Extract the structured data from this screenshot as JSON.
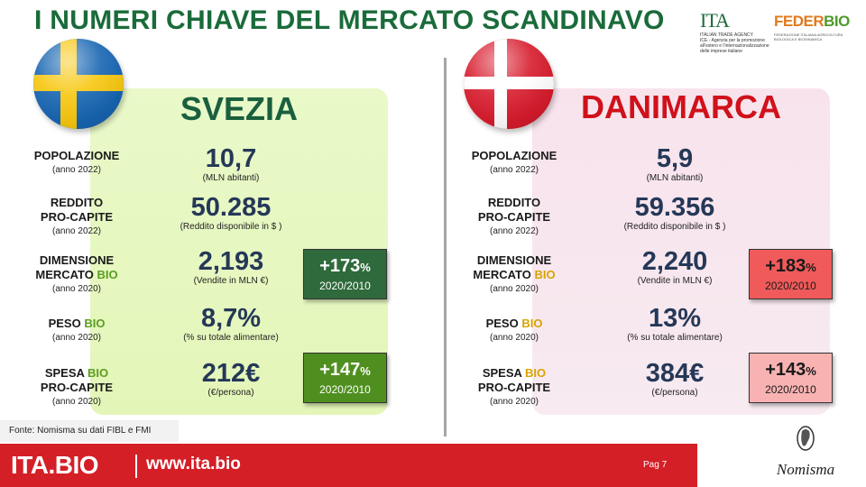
{
  "title": "I NUMERI CHIAVE DEL MERCATO SCANDINAVO",
  "logos": {
    "ita": {
      "mark": "ITA",
      "line1": "ITALIAN TRADE AGENCY",
      "line2": "ICE - Agenzia per la promozione all'estero e l'internazionalizzazione delle imprese italiane"
    },
    "federbio": {
      "mark_a": "FEDER",
      "mark_b": "BIO",
      "sub": "FEDERAZIONE ITALIANA AGRICOLTURA BIOLOGICA E BIODINAMICA"
    },
    "nomisma": "Nomisma"
  },
  "sweden": {
    "name": "SVEZIA",
    "flag_icon": "sweden-flag-icon",
    "rows": [
      {
        "label1": "POPOLAZIONE",
        "label2": "",
        "year": "(anno 2022)",
        "value": "10,7",
        "unit": "(MLN abitanti)"
      },
      {
        "label1": "REDDITO",
        "label2": "PRO-CAPITE",
        "year": "(anno 2022)",
        "value": "50.285",
        "unit": "(Reddito disponibile in $ )"
      },
      {
        "label1": "DIMENSIONE",
        "label2a": "MERCATO ",
        "label2b": "BIO",
        "year": "(anno 2020)",
        "value": "2,193",
        "unit": "(Vendite in MLN €)"
      },
      {
        "label1a": "PESO ",
        "label1b": "BIO",
        "year": "(anno 2020)",
        "value": "8,7%",
        "unit": "(% su totale alimentare)"
      },
      {
        "label1a": "SPESA ",
        "label1b": "BIO",
        "label2": "PRO-CAPITE",
        "year": "(anno 2020)",
        "value": "212€",
        "unit": "(€/persona)"
      }
    ],
    "badges": [
      {
        "pct": "+173",
        "sym": "%",
        "period": "2020/2010",
        "color": "#2e6a3b"
      },
      {
        "pct": "+147",
        "sym": "%",
        "period": "2020/2010",
        "color": "#4f8f1f"
      }
    ]
  },
  "denmark": {
    "name": "DANIMARCA",
    "flag_icon": "denmark-flag-icon",
    "rows": [
      {
        "label1": "POPOLAZIONE",
        "label2": "",
        "year": "(anno 2022)",
        "value": "5,9",
        "unit": "(MLN abitanti)"
      },
      {
        "label1": "REDDITO",
        "label2": "PRO-CAPITE",
        "year": "(anno 2022)",
        "value": "59.356",
        "unit": "(Reddito disponibile in $ )"
      },
      {
        "label1": "DIMENSIONE",
        "label2a": "MERCATO ",
        "label2b": "BIO",
        "year": "(anno 2020)",
        "value": "2,240",
        "unit": "(Vendite in MLN €)"
      },
      {
        "label1a": "PESO ",
        "label1b": "BIO",
        "year": "(anno 2020)",
        "value": "13%",
        "unit": "(% su totale alimentare)"
      },
      {
        "label1a": "SPESA ",
        "label1b": "BIO",
        "label2": "PRO-CAPITE",
        "year": "(anno 2020)",
        "value": "384€",
        "unit": "(€/persona)"
      }
    ],
    "badges": [
      {
        "pct": "+183",
        "sym": "%",
        "period": "2020/2010",
        "color": "#f05a5a"
      },
      {
        "pct": "+143",
        "sym": "%",
        "period": "2020/2010",
        "color": "#f9b2b2"
      }
    ]
  },
  "source": "Fonte: Nomisma su dati FIBL e FMI",
  "footer": {
    "brand": "ITA.BIO",
    "url": "www.ita.bio",
    "page": "Pag 7"
  }
}
